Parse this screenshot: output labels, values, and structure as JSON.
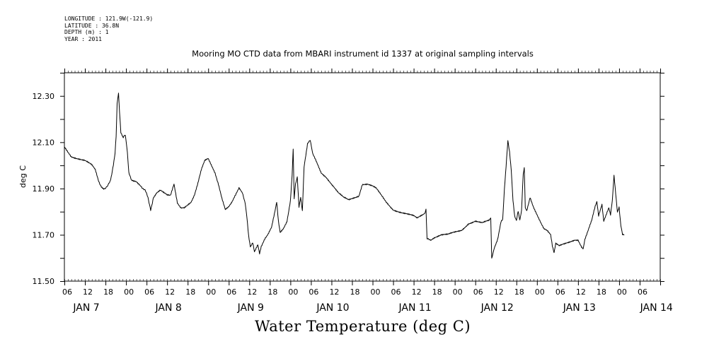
{
  "metadata": {
    "longitude": "LONGITUDE : 121.9W(-121.9)",
    "latitude": "LATITUDE : 36.8N",
    "depth": "DEPTH (m) : 1",
    "year": "YEAR : 2011"
  },
  "chart_data": {
    "type": "line",
    "title": "Mooring MO CTD data from MBARI instrument id 1337 at original sampling intervals",
    "xlabel": "Water Temperature (deg C)",
    "ylabel": "deg C",
    "ylim": [
      11.5,
      12.4
    ],
    "y_ticks": [
      "11.50",
      "11.70",
      "11.90",
      "12.10",
      "12.30"
    ],
    "x_range_hours": [
      0,
      174
    ],
    "x_hour_labels": [
      "06",
      "12",
      "18",
      "00",
      "06",
      "12",
      "18",
      "00",
      "06",
      "12",
      "18",
      "00",
      "06",
      "12",
      "18",
      "00",
      "06",
      "12",
      "18",
      "00",
      "06",
      "12",
      "18",
      "00",
      "06",
      "12",
      "18",
      "00",
      "06"
    ],
    "x_day_labels": [
      "JAN  7",
      "JAN  8",
      "JAN  9",
      "JAN 10",
      "JAN 11",
      "JAN 12",
      "JAN 13",
      "JAN 14"
    ],
    "series": [
      {
        "color": "#000000",
        "points": [
          [
            0.0,
            12.08
          ],
          [
            1.0,
            12.06
          ],
          [
            2.0,
            12.04
          ],
          [
            4.0,
            12.03
          ],
          [
            6.0,
            12.02
          ],
          [
            8.0,
            12.0
          ],
          [
            9.0,
            11.98
          ],
          [
            10.0,
            11.93
          ],
          [
            10.8,
            11.91
          ],
          [
            11.5,
            11.9
          ],
          [
            12.6,
            11.91
          ],
          [
            13.5,
            11.94
          ],
          [
            14.3,
            12.0
          ],
          [
            14.8,
            12.05
          ],
          [
            15.1,
            12.12
          ],
          [
            15.4,
            12.27
          ],
          [
            15.8,
            12.31
          ],
          [
            16.1,
            12.23
          ],
          [
            16.5,
            12.14
          ],
          [
            17.2,
            12.12
          ],
          [
            17.8,
            12.13
          ],
          [
            18.4,
            12.06
          ],
          [
            18.8,
            11.97
          ],
          [
            19.6,
            11.94
          ],
          [
            21.0,
            11.93
          ],
          [
            22.5,
            11.91
          ],
          [
            23.6,
            11.89
          ],
          [
            24.4,
            11.86
          ],
          [
            25.2,
            11.81
          ],
          [
            26.0,
            11.86
          ],
          [
            27.0,
            11.88
          ],
          [
            28.0,
            11.89
          ],
          [
            29.0,
            11.88
          ],
          [
            30.0,
            11.87
          ],
          [
            31.0,
            11.87
          ],
          [
            32.0,
            11.92
          ],
          [
            32.5,
            11.88
          ],
          [
            33.0,
            11.84
          ],
          [
            34.0,
            11.82
          ],
          [
            35.0,
            11.82
          ],
          [
            36.0,
            11.83
          ],
          [
            37.0,
            11.84
          ],
          [
            38.0,
            11.87
          ],
          [
            39.0,
            11.92
          ],
          [
            40.0,
            11.98
          ],
          [
            41.0,
            12.02
          ],
          [
            42.0,
            12.03
          ],
          [
            43.0,
            12.0
          ],
          [
            44.0,
            11.97
          ],
          [
            45.0,
            11.92
          ],
          [
            46.0,
            11.86
          ],
          [
            47.0,
            11.81
          ],
          [
            48.0,
            11.82
          ],
          [
            49.0,
            11.84
          ],
          [
            50.0,
            11.87
          ],
          [
            51.0,
            11.9
          ],
          [
            52.0,
            11.88
          ],
          [
            52.8,
            11.84
          ],
          [
            53.3,
            11.78
          ],
          [
            53.8,
            11.7
          ],
          [
            54.3,
            11.65
          ],
          [
            55.0,
            11.67
          ],
          [
            55.5,
            11.63
          ],
          [
            56.5,
            11.66
          ],
          [
            57.0,
            11.62
          ],
          [
            57.5,
            11.65
          ],
          [
            58.5,
            11.68
          ],
          [
            59.5,
            11.7
          ],
          [
            60.5,
            11.73
          ],
          [
            61.5,
            11.8
          ],
          [
            62.0,
            11.84
          ],
          [
            62.5,
            11.76
          ],
          [
            63.0,
            11.71
          ],
          [
            64.0,
            11.73
          ],
          [
            65.0,
            11.76
          ],
          [
            66.0,
            11.85
          ],
          [
            66.5,
            11.96
          ],
          [
            66.8,
            12.07
          ],
          [
            67.1,
            11.85
          ],
          [
            67.5,
            11.92
          ],
          [
            68.0,
            11.95
          ],
          [
            68.5,
            11.82
          ],
          [
            69.0,
            11.86
          ],
          [
            69.5,
            11.8
          ],
          [
            70.0,
            11.99
          ],
          [
            71.0,
            12.09
          ],
          [
            71.8,
            12.11
          ],
          [
            72.5,
            12.05
          ],
          [
            73.5,
            12.02
          ],
          [
            75.0,
            11.97
          ],
          [
            76.5,
            11.95
          ],
          [
            78.0,
            11.92
          ],
          [
            80.0,
            11.88
          ],
          [
            81.5,
            11.86
          ],
          [
            83.0,
            11.85
          ],
          [
            84.5,
            11.86
          ],
          [
            86.0,
            11.87
          ],
          [
            87.0,
            11.92
          ],
          [
            88.5,
            11.92
          ],
          [
            90.0,
            11.91
          ],
          [
            91.0,
            11.9
          ],
          [
            92.5,
            11.87
          ],
          [
            94.0,
            11.84
          ],
          [
            96.0,
            11.81
          ],
          [
            98.0,
            11.8
          ],
          [
            100.0,
            11.79
          ],
          [
            102.0,
            11.78
          ],
          [
            103.0,
            11.77
          ],
          [
            104.0,
            11.78
          ],
          [
            105.0,
            11.79
          ],
          [
            105.6,
            11.81
          ],
          [
            105.9,
            11.68
          ],
          [
            107.0,
            11.68
          ],
          [
            108.0,
            11.69
          ],
          [
            110.0,
            11.7
          ],
          [
            112.0,
            11.7
          ],
          [
            114.0,
            11.71
          ],
          [
            116.0,
            11.72
          ],
          [
            118.0,
            11.75
          ],
          [
            120.0,
            11.76
          ],
          [
            122.0,
            11.75
          ],
          [
            124.0,
            11.76
          ],
          [
            124.5,
            11.77
          ],
          [
            124.8,
            11.6
          ],
          [
            125.5,
            11.64
          ],
          [
            126.5,
            11.68
          ],
          [
            127.0,
            11.72
          ],
          [
            127.5,
            11.76
          ],
          [
            128.0,
            11.77
          ],
          [
            128.5,
            11.9
          ],
          [
            129.0,
            12.0
          ],
          [
            129.5,
            12.11
          ],
          [
            130.0,
            12.06
          ],
          [
            130.5,
            11.98
          ],
          [
            131.0,
            11.85
          ],
          [
            131.5,
            11.78
          ],
          [
            132.0,
            11.76
          ],
          [
            132.5,
            11.8
          ],
          [
            133.0,
            11.76
          ],
          [
            133.5,
            11.8
          ],
          [
            134.0,
            11.96
          ],
          [
            134.3,
            11.99
          ],
          [
            134.6,
            11.82
          ],
          [
            135.0,
            11.8
          ],
          [
            135.5,
            11.83
          ],
          [
            136.0,
            11.86
          ],
          [
            137.0,
            11.82
          ],
          [
            138.0,
            11.79
          ],
          [
            139.0,
            11.76
          ],
          [
            140.0,
            11.73
          ],
          [
            141.0,
            11.72
          ],
          [
            142.0,
            11.7
          ],
          [
            142.5,
            11.65
          ],
          [
            143.0,
            11.62
          ],
          [
            143.5,
            11.66
          ],
          [
            144.5,
            11.65
          ],
          [
            146.0,
            11.66
          ],
          [
            147.5,
            11.67
          ],
          [
            149.0,
            11.68
          ],
          [
            150.0,
            11.68
          ],
          [
            151.0,
            11.65
          ],
          [
            151.5,
            11.64
          ],
          [
            152.0,
            11.68
          ],
          [
            153.0,
            11.72
          ],
          [
            154.0,
            11.76
          ],
          [
            155.0,
            11.82
          ],
          [
            155.5,
            11.84
          ],
          [
            156.0,
            11.78
          ],
          [
            157.0,
            11.83
          ],
          [
            157.5,
            11.76
          ],
          [
            158.0,
            11.78
          ],
          [
            159.0,
            11.82
          ],
          [
            159.5,
            11.79
          ],
          [
            160.0,
            11.85
          ],
          [
            160.5,
            11.96
          ],
          [
            161.0,
            11.88
          ],
          [
            161.5,
            11.8
          ],
          [
            162.0,
            11.82
          ],
          [
            162.5,
            11.74
          ],
          [
            163.0,
            11.7
          ],
          [
            163.5,
            11.7
          ]
        ]
      }
    ]
  }
}
